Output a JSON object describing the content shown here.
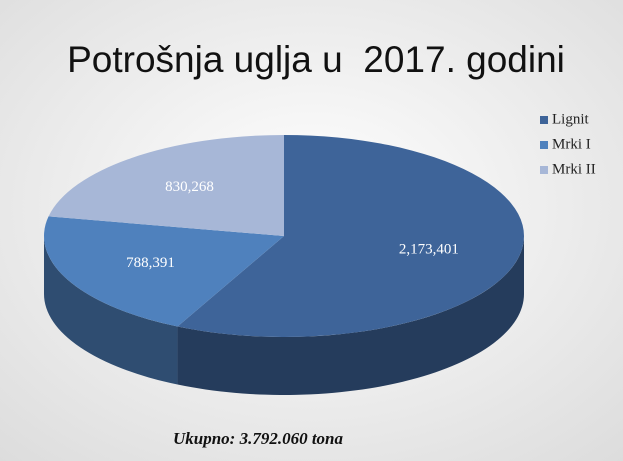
{
  "chart_data": {
    "type": "pie",
    "title": "Potrošnja uglja u  2017. godini",
    "categories": [
      "Lignit",
      "Mrki I",
      "Mrki II"
    ],
    "values": [
      2173401,
      788391,
      830268
    ],
    "value_labels": [
      "2,173,401",
      "788,391",
      "830,268"
    ],
    "colors": [
      "#3e6499",
      "#4f81bd",
      "#a7b7d7"
    ],
    "legend": "right",
    "annotation": "Ukupno: 3.792.060 tona"
  }
}
